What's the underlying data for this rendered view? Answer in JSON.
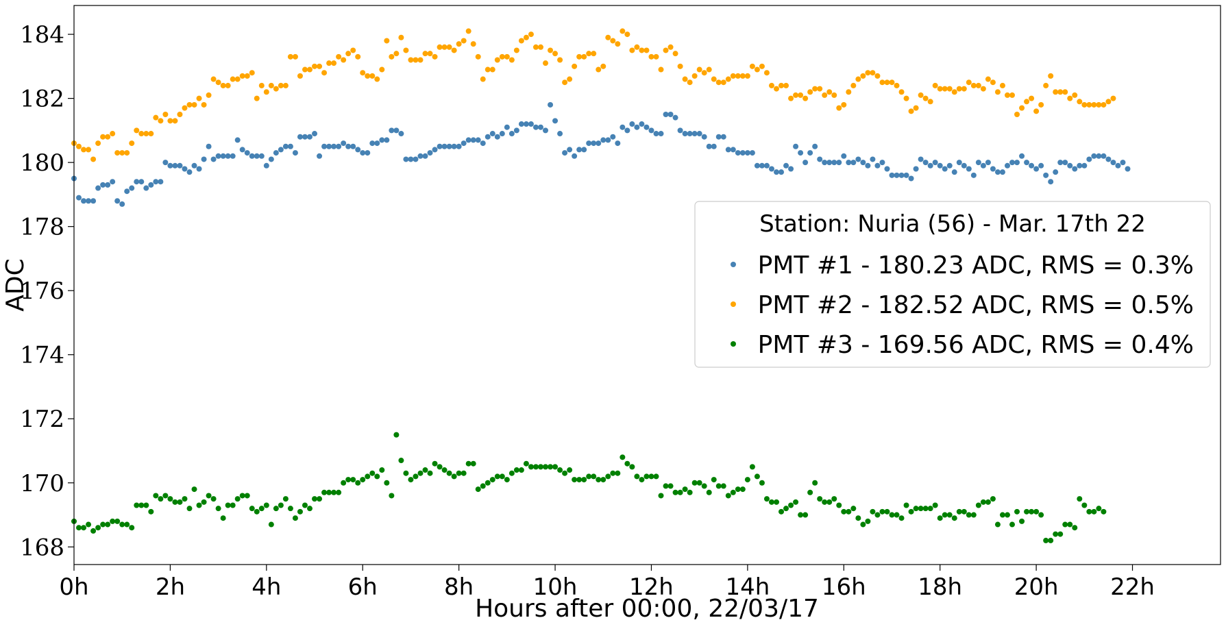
{
  "chart_data": {
    "type": "scatter",
    "title": "",
    "xlabel": "Hours after 00:00, 22/03/17",
    "ylabel": "ADC",
    "xlim": [
      0,
      23.83
    ],
    "ylim": [
      167.45,
      184.9
    ],
    "grid": false,
    "legend_position": "center-right",
    "x_ticks": [
      {
        "value": 0,
        "label": "0h"
      },
      {
        "value": 2,
        "label": "2h"
      },
      {
        "value": 4,
        "label": "4h"
      },
      {
        "value": 6,
        "label": "6h"
      },
      {
        "value": 8,
        "label": "8h"
      },
      {
        "value": 10,
        "label": "10h"
      },
      {
        "value": 12,
        "label": "12h"
      },
      {
        "value": 14,
        "label": "14h"
      },
      {
        "value": 16,
        "label": "16h"
      },
      {
        "value": 18,
        "label": "18h"
      },
      {
        "value": 20,
        "label": "20h"
      },
      {
        "value": 22,
        "label": "22h"
      }
    ],
    "y_ticks": [
      {
        "value": 168,
        "label": "168"
      },
      {
        "value": 170,
        "label": "170"
      },
      {
        "value": 172,
        "label": "172"
      },
      {
        "value": 174,
        "label": "174"
      },
      {
        "value": 176,
        "label": "176"
      },
      {
        "value": 178,
        "label": "178"
      },
      {
        "value": 180,
        "label": "180"
      },
      {
        "value": 182,
        "label": "182"
      },
      {
        "value": 184,
        "label": "184"
      }
    ],
    "legend_title": "Station: Nuria (56) - Mar. 17th 22",
    "sample_interval_hours": 0.1,
    "series": [
      {
        "name": "PMT #1 - 180.23 ADC, RMS = 0.3%",
        "color": "#4682b4",
        "values": [
          179.5,
          178.9,
          178.8,
          178.8,
          178.8,
          179.2,
          179.3,
          179.3,
          179.4,
          178.8,
          178.7,
          179.1,
          179.2,
          179.4,
          179.4,
          179.2,
          179.3,
          179.4,
          179.4,
          180.0,
          179.9,
          179.9,
          179.9,
          179.8,
          179.7,
          179.9,
          179.8,
          180.1,
          180.5,
          180.1,
          180.2,
          180.2,
          180.2,
          180.2,
          180.7,
          180.4,
          180.3,
          180.2,
          180.2,
          180.2,
          179.9,
          180.1,
          180.3,
          180.4,
          180.5,
          180.5,
          180.3,
          180.8,
          180.8,
          180.8,
          180.9,
          180.2,
          180.5,
          180.5,
          180.5,
          180.5,
          180.6,
          180.5,
          180.5,
          180.4,
          180.3,
          180.3,
          180.6,
          180.6,
          180.7,
          180.7,
          181.0,
          181.0,
          180.9,
          180.1,
          180.1,
          180.1,
          180.2,
          180.2,
          180.3,
          180.4,
          180.5,
          180.5,
          180.5,
          180.5,
          180.5,
          180.6,
          180.7,
          180.7,
          180.7,
          180.6,
          180.8,
          180.9,
          180.8,
          180.9,
          181.1,
          180.9,
          181.0,
          181.2,
          181.2,
          181.2,
          181.1,
          181.1,
          181.0,
          181.8,
          181.3,
          180.9,
          180.3,
          180.4,
          180.2,
          180.4,
          180.4,
          180.6,
          180.6,
          180.6,
          180.7,
          180.7,
          180.8,
          180.6,
          181.1,
          181.0,
          181.2,
          181.1,
          181.2,
          181.1,
          181.0,
          180.9,
          180.9,
          181.5,
          181.5,
          181.4,
          181.0,
          180.9,
          180.9,
          180.9,
          180.9,
          180.8,
          180.5,
          180.5,
          180.8,
          180.8,
          180.4,
          180.4,
          180.3,
          180.3,
          180.3,
          180.3,
          179.9,
          179.9,
          179.9,
          179.8,
          179.7,
          179.7,
          179.9,
          179.8,
          180.5,
          180.3,
          180.0,
          180.3,
          180.5,
          180.1,
          180.0,
          180.0,
          180.0,
          180.0,
          180.2,
          180.0,
          180.0,
          180.1,
          180.0,
          179.9,
          180.1,
          179.9,
          180.0,
          179.8,
          179.6,
          179.6,
          179.6,
          179.6,
          179.5,
          179.8,
          180.1,
          180.0,
          179.9,
          180.0,
          179.9,
          179.8,
          179.9,
          179.7,
          180.0,
          179.9,
          179.8,
          179.6,
          180.0,
          179.9,
          180.0,
          179.8,
          179.7,
          179.7,
          179.9,
          180.0,
          180.0,
          180.2,
          180.0,
          179.9,
          179.8,
          179.9,
          179.6,
          179.4,
          179.7,
          180.0,
          180.0,
          179.9,
          179.8,
          179.9,
          179.9,
          180.1,
          180.2,
          180.2,
          180.2,
          180.1,
          180.0,
          179.9,
          180.0,
          179.8
        ]
      },
      {
        "name": "PMT #2 - 182.52 ADC, RMS = 0.5%",
        "color": "#ffa500",
        "values": [
          180.6,
          180.5,
          180.4,
          180.4,
          180.1,
          180.6,
          180.8,
          180.8,
          180.9,
          180.3,
          180.3,
          180.3,
          180.6,
          181.0,
          180.9,
          180.9,
          180.9,
          181.4,
          181.3,
          181.5,
          181.3,
          181.3,
          181.5,
          181.7,
          181.8,
          181.8,
          182.0,
          181.8,
          182.1,
          182.6,
          182.5,
          182.4,
          182.4,
          182.6,
          182.6,
          182.7,
          182.7,
          182.8,
          182.0,
          182.4,
          182.2,
          182.4,
          182.3,
          182.4,
          182.4,
          183.3,
          183.3,
          182.7,
          182.9,
          182.9,
          183.0,
          183.0,
          182.8,
          183.1,
          183.1,
          183.3,
          183.2,
          183.4,
          183.5,
          183.3,
          182.8,
          182.7,
          182.7,
          182.6,
          182.9,
          183.8,
          183.3,
          183.4,
          183.9,
          183.5,
          183.2,
          183.2,
          183.2,
          183.4,
          183.4,
          183.3,
          183.6,
          183.6,
          183.6,
          183.5,
          183.7,
          183.8,
          184.1,
          183.7,
          183.3,
          182.6,
          182.9,
          182.9,
          183.2,
          183.3,
          183.3,
          183.2,
          183.5,
          183.8,
          183.9,
          184.0,
          183.6,
          183.6,
          183.1,
          183.5,
          183.4,
          183.2,
          182.5,
          182.6,
          183.0,
          183.3,
          183.3,
          183.4,
          183.4,
          182.9,
          183.0,
          183.9,
          183.8,
          183.7,
          184.1,
          184.0,
          183.5,
          183.6,
          183.5,
          183.5,
          183.3,
          183.3,
          182.9,
          183.5,
          183.6,
          183.4,
          183.0,
          182.6,
          182.5,
          182.7,
          182.9,
          182.8,
          182.9,
          182.6,
          182.5,
          182.5,
          182.6,
          182.7,
          182.7,
          182.7,
          182.7,
          183.0,
          182.9,
          183.0,
          182.8,
          182.4,
          182.3,
          182.4,
          182.4,
          182.0,
          182.1,
          182.1,
          182.0,
          182.2,
          182.3,
          182.3,
          182.1,
          182.2,
          182.1,
          181.7,
          181.8,
          182.2,
          182.4,
          182.6,
          182.7,
          182.8,
          182.8,
          182.7,
          182.5,
          182.5,
          182.5,
          182.4,
          182.2,
          182.0,
          181.6,
          181.7,
          182.1,
          182.0,
          181.9,
          182.4,
          182.3,
          182.3,
          182.3,
          182.2,
          182.3,
          182.3,
          182.5,
          182.4,
          182.4,
          182.3,
          182.6,
          182.5,
          182.2,
          182.4,
          182.1,
          182.1,
          181.5,
          181.7,
          181.9,
          182.0,
          181.6,
          181.8,
          182.4,
          182.7,
          182.2,
          182.2,
          182.2,
          182.0,
          182.1,
          181.9,
          181.8,
          181.8,
          181.8,
          181.8,
          181.8,
          181.9,
          182.0
        ]
      },
      {
        "name": "PMT #3 - 169.56 ADC, RMS = 0.4%",
        "color": "#008000",
        "values": [
          168.8,
          168.6,
          168.6,
          168.7,
          168.5,
          168.6,
          168.7,
          168.7,
          168.8,
          168.8,
          168.7,
          168.7,
          168.6,
          169.3,
          169.3,
          169.3,
          169.1,
          169.6,
          169.5,
          169.6,
          169.5,
          169.4,
          169.4,
          169.5,
          169.2,
          169.8,
          169.3,
          169.4,
          169.6,
          169.5,
          169.2,
          168.9,
          169.3,
          169.3,
          169.5,
          169.6,
          169.6,
          169.2,
          169.1,
          169.2,
          169.3,
          168.7,
          169.2,
          169.3,
          169.5,
          169.2,
          168.9,
          169.1,
          169.3,
          169.2,
          169.5,
          169.5,
          169.7,
          169.7,
          169.7,
          169.7,
          170.0,
          170.1,
          170.1,
          170.0,
          170.1,
          170.2,
          170.3,
          170.2,
          170.4,
          170.0,
          169.6,
          171.5,
          170.7,
          170.3,
          170.1,
          170.2,
          170.3,
          170.4,
          170.3,
          170.6,
          170.5,
          170.4,
          170.3,
          170.2,
          170.3,
          170.3,
          170.6,
          170.6,
          169.8,
          169.9,
          170.0,
          170.1,
          170.2,
          170.2,
          170.1,
          170.3,
          170.4,
          170.4,
          170.6,
          170.5,
          170.5,
          170.5,
          170.5,
          170.5,
          170.5,
          170.4,
          170.3,
          170.4,
          170.1,
          170.1,
          170.1,
          170.2,
          170.2,
          170.1,
          170.1,
          170.2,
          170.3,
          170.3,
          170.8,
          170.6,
          170.5,
          170.2,
          170.1,
          170.2,
          170.2,
          170.2,
          169.6,
          169.9,
          169.9,
          169.7,
          169.7,
          169.8,
          169.7,
          170.0,
          170.0,
          169.9,
          169.7,
          170.1,
          169.9,
          169.9,
          169.6,
          169.7,
          169.8,
          169.8,
          170.1,
          170.5,
          170.2,
          170.0,
          169.5,
          169.4,
          169.4,
          169.1,
          169.2,
          169.3,
          169.4,
          169.0,
          169.0,
          169.7,
          170.0,
          169.5,
          169.4,
          169.4,
          169.5,
          169.3,
          169.1,
          169.1,
          169.2,
          168.9,
          168.7,
          168.8,
          169.1,
          169.0,
          169.1,
          169.1,
          169.0,
          169.0,
          168.9,
          169.3,
          169.1,
          169.2,
          169.2,
          169.2,
          169.2,
          169.3,
          168.9,
          169.0,
          169.0,
          168.9,
          169.1,
          169.1,
          169.0,
          169.0,
          169.3,
          169.4,
          169.4,
          169.5,
          168.7,
          169.0,
          169.0,
          168.7,
          169.1,
          168.8,
          169.1,
          169.1,
          169.1,
          169.0,
          168.2,
          168.2,
          168.4,
          168.4,
          168.7,
          168.7,
          168.6,
          169.5,
          169.3,
          169.1,
          169.1,
          169.2,
          169.1
        ]
      }
    ]
  }
}
